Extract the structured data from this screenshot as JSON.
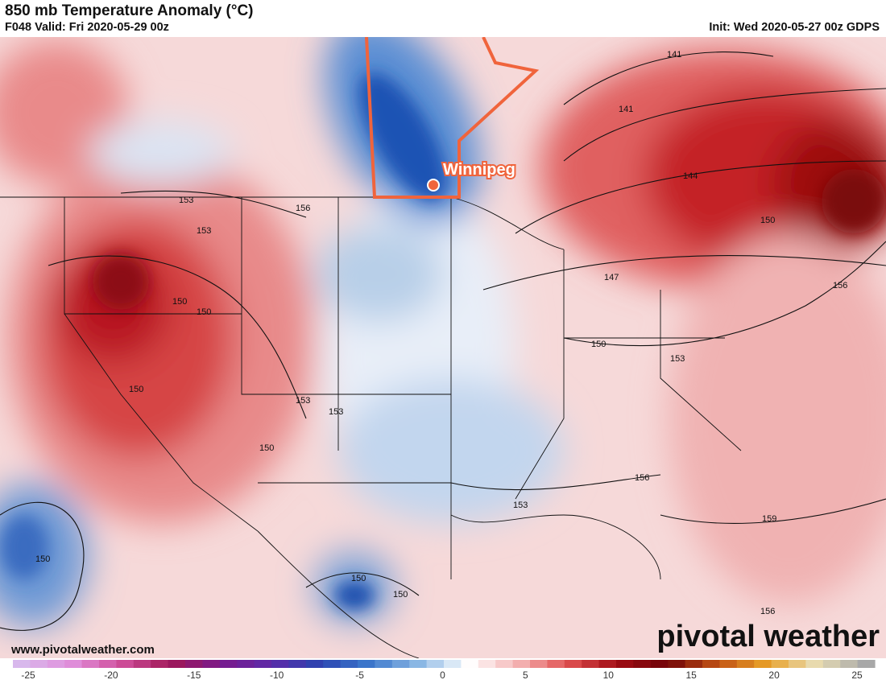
{
  "header": {
    "title": "850 mb Temperature Anomaly (°C)",
    "valid": "F048 Valid: Fri 2020-05-29 00z",
    "init": "Init: Wed 2020-05-27 00z GDPS"
  },
  "map": {
    "city_label": "Winnipeg",
    "website": "www.pivotalweather.com",
    "brand": "pivotal weather",
    "highlight_color": "#f0643c",
    "contour_labels": [
      "141",
      "141",
      "144",
      "150",
      "156",
      "147",
      "150",
      "153",
      "153",
      "153",
      "156",
      "150",
      "150",
      "150",
      "150",
      "153",
      "150",
      "153",
      "156",
      "159",
      "150",
      "150",
      "153",
      "156"
    ]
  },
  "colorbar": {
    "min": -25,
    "max": 25,
    "ticks": [
      "-25",
      "-20",
      "-15",
      "-10",
      "-5",
      "0",
      "5",
      "10",
      "15",
      "20",
      "25"
    ],
    "tick_values": [
      -25,
      -20,
      -15,
      -10,
      -5,
      0,
      5,
      10,
      15,
      20,
      25
    ],
    "stops": [
      "#d8b8ec",
      "#e090dc",
      "#d0509c",
      "#a01858",
      "#7a1a8c",
      "#5e2aa8",
      "#2c44b0",
      "#3c78cc",
      "#8cb8e4",
      "#ffffff",
      "#f4b4b4",
      "#e05050",
      "#a00c14",
      "#700408",
      "#c05014",
      "#e8a028",
      "#e8dcb4",
      "#a8a8a8"
    ]
  }
}
